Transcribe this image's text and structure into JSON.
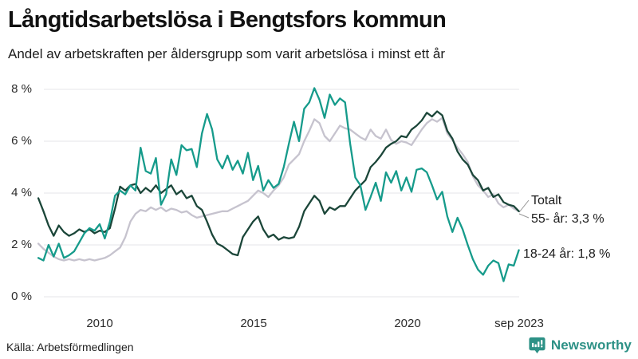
{
  "header": {
    "title": "Långtidsarbetslösa i Bengtsfors kommun",
    "subtitle": "Andel av arbetskraften per åldersgrupp som varit arbetslösa i minst ett år"
  },
  "footer": {
    "source": "Källa: Arbetsförmedlingen",
    "brand": "Newsworthy"
  },
  "chart_data": {
    "type": "line",
    "title": "Långtidsarbetslösa i Bengtsfors kommun",
    "xlabel": "",
    "ylabel": "",
    "x_range": [
      2008.0,
      2023.67
    ],
    "ylim": [
      0,
      8
    ],
    "grid": "horizontal",
    "grid_color": "#e4e4e9",
    "x_start": 2008.0,
    "x_step": 0.166667,
    "y_ticks": [
      {
        "label": "8 %",
        "value": 8
      },
      {
        "label": "6 %",
        "value": 6
      },
      {
        "label": "4 %",
        "value": 4
      },
      {
        "label": "2 %",
        "value": 2
      },
      {
        "label": "0 %",
        "value": 0
      }
    ],
    "x_ticks": [
      {
        "label": "2010",
        "value": 2010
      },
      {
        "label": "2015",
        "value": 2015
      },
      {
        "label": "2020",
        "value": 2020
      },
      {
        "label": "sep 2023",
        "value": 2023.67
      }
    ],
    "annotations": [
      {
        "text": "Totalt"
      },
      {
        "text": "55- år: 3,3 %"
      },
      {
        "text": "18-24 år: 1,8 %"
      }
    ],
    "series": [
      {
        "id": "totalt",
        "name": "Totalt",
        "color": "#c6c3ce",
        "end_label": "3,3 %",
        "values": [
          2.05,
          1.85,
          1.7,
          1.55,
          1.45,
          1.4,
          1.45,
          1.4,
          1.45,
          1.4,
          1.45,
          1.4,
          1.45,
          1.5,
          1.6,
          1.75,
          1.9,
          2.3,
          2.9,
          3.2,
          3.35,
          3.3,
          3.45,
          3.35,
          3.45,
          3.3,
          3.4,
          3.35,
          3.25,
          3.3,
          3.15,
          3.05,
          3.1,
          3.15,
          3.2,
          3.25,
          3.3,
          3.3,
          3.4,
          3.5,
          3.6,
          3.7,
          3.9,
          4.1,
          4.0,
          3.85,
          4.1,
          4.3,
          4.6,
          5.1,
          5.3,
          5.5,
          6.0,
          6.4,
          6.85,
          6.7,
          6.2,
          6.0,
          6.3,
          6.6,
          6.5,
          6.45,
          6.3,
          6.15,
          6.05,
          6.45,
          6.2,
          6.1,
          6.45,
          6.05,
          5.9,
          6.0,
          5.95,
          5.85,
          6.15,
          6.45,
          6.7,
          6.85,
          6.75,
          6.9,
          6.3,
          6.05,
          5.75,
          5.5,
          5.2,
          4.65,
          4.3,
          4.1,
          3.85,
          3.95,
          3.6,
          3.45,
          3.55,
          3.4,
          3.3
        ]
      },
      {
        "id": "55-ar",
        "name": "55- år",
        "color": "#1b4639",
        "end_label": "3,3 %",
        "values": [
          3.8,
          3.3,
          2.75,
          2.35,
          2.75,
          2.5,
          2.35,
          2.45,
          2.6,
          2.5,
          2.6,
          2.45,
          2.55,
          2.5,
          2.65,
          3.4,
          4.25,
          4.1,
          4.3,
          4.35,
          4.0,
          4.2,
          4.05,
          4.3,
          4.0,
          4.15,
          4.3,
          3.95,
          4.1,
          3.8,
          3.9,
          3.5,
          3.35,
          2.9,
          2.4,
          2.05,
          1.95,
          1.8,
          1.65,
          1.6,
          2.3,
          2.6,
          2.9,
          3.1,
          2.6,
          2.3,
          2.4,
          2.2,
          2.3,
          2.25,
          2.3,
          2.7,
          3.3,
          3.6,
          3.9,
          3.7,
          3.2,
          3.45,
          3.35,
          3.5,
          3.5,
          3.8,
          4.1,
          4.3,
          4.5,
          5.0,
          5.2,
          5.45,
          5.75,
          5.9,
          6.0,
          6.2,
          6.15,
          6.45,
          6.6,
          6.8,
          7.1,
          6.95,
          7.15,
          7.0,
          6.4,
          6.1,
          5.6,
          5.3,
          5.1,
          4.7,
          4.5,
          4.1,
          4.2,
          3.85,
          3.95,
          3.65,
          3.55,
          3.5,
          3.3
        ]
      },
      {
        "id": "18-24-ar",
        "name": "18-24 år",
        "color": "#169b8b",
        "end_label": "1,8 %",
        "values": [
          1.5,
          1.4,
          2.0,
          1.55,
          2.05,
          1.5,
          1.6,
          1.75,
          2.1,
          2.45,
          2.65,
          2.55,
          2.8,
          2.25,
          2.9,
          3.9,
          4.1,
          3.95,
          4.3,
          4.1,
          5.75,
          4.85,
          4.75,
          5.35,
          3.55,
          3.95,
          5.3,
          4.7,
          5.85,
          5.65,
          5.7,
          5.0,
          6.3,
          7.05,
          6.45,
          5.3,
          4.95,
          5.45,
          4.9,
          5.25,
          4.75,
          5.55,
          4.5,
          5.05,
          4.1,
          4.5,
          4.2,
          4.35,
          5.0,
          5.9,
          6.75,
          6.0,
          7.25,
          7.5,
          8.05,
          7.6,
          6.9,
          7.8,
          7.4,
          7.65,
          7.5,
          5.9,
          4.6,
          4.3,
          3.35,
          3.85,
          4.4,
          3.7,
          4.8,
          4.4,
          4.85,
          4.1,
          4.6,
          4.05,
          4.9,
          4.95,
          4.8,
          4.3,
          3.75,
          4.05,
          3.1,
          2.5,
          3.05,
          2.6,
          2.0,
          1.45,
          1.05,
          0.85,
          1.2,
          1.4,
          1.3,
          0.6,
          1.25,
          1.2,
          1.8
        ]
      }
    ]
  }
}
